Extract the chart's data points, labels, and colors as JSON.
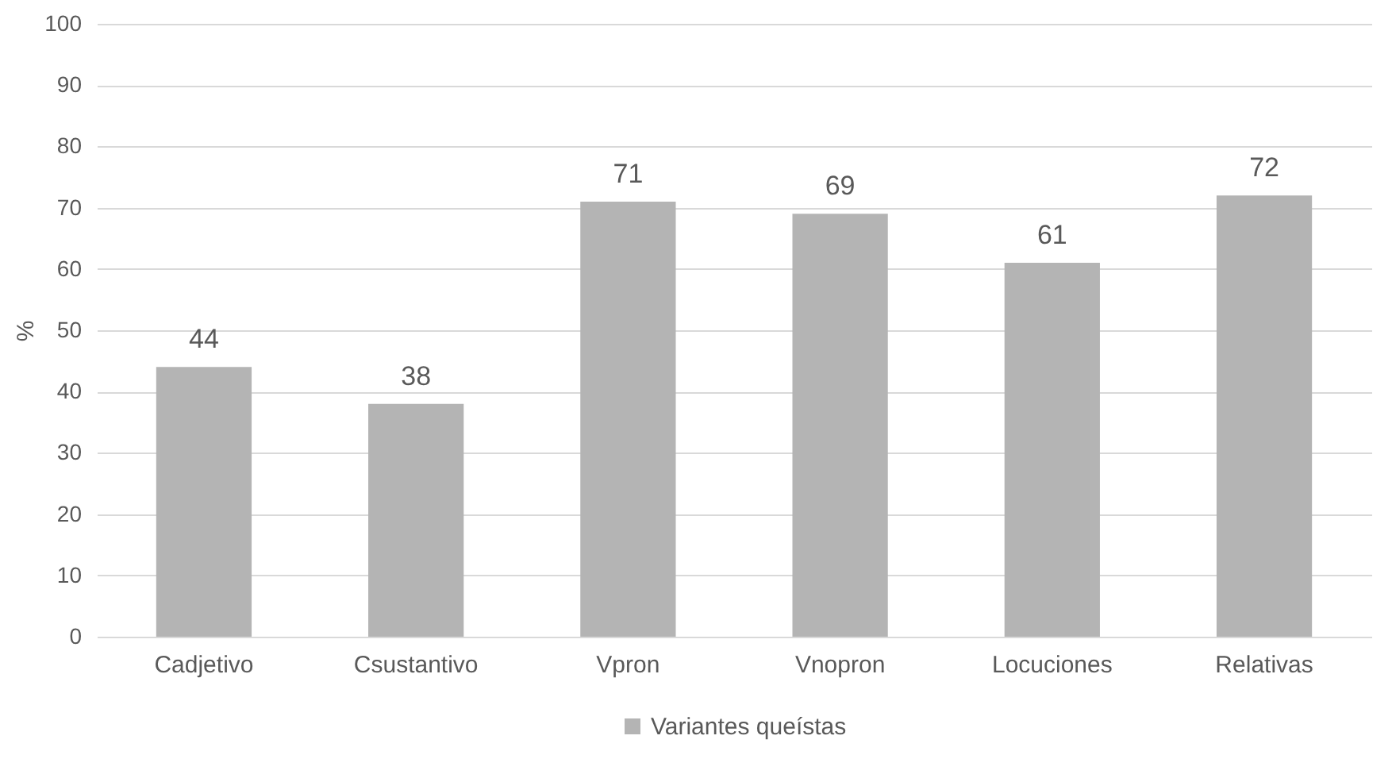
{
  "chart_data": {
    "type": "bar",
    "ylabel": "%",
    "categories": [
      "Cadjetivo",
      "Csustantivo",
      "Vpron",
      "Vnopron",
      "Locuciones",
      "Relativas"
    ],
    "series": [
      {
        "name": "Variantes queístas",
        "color": "#b4b4b4",
        "values": [
          44,
          38,
          71,
          69,
          61,
          72
        ]
      }
    ],
    "ylim": [
      0,
      100
    ],
    "yticks": [
      0,
      10,
      20,
      30,
      40,
      50,
      60,
      70,
      80,
      90,
      100
    ],
    "grid": "y",
    "legend": "bottom",
    "data_labels": true
  }
}
